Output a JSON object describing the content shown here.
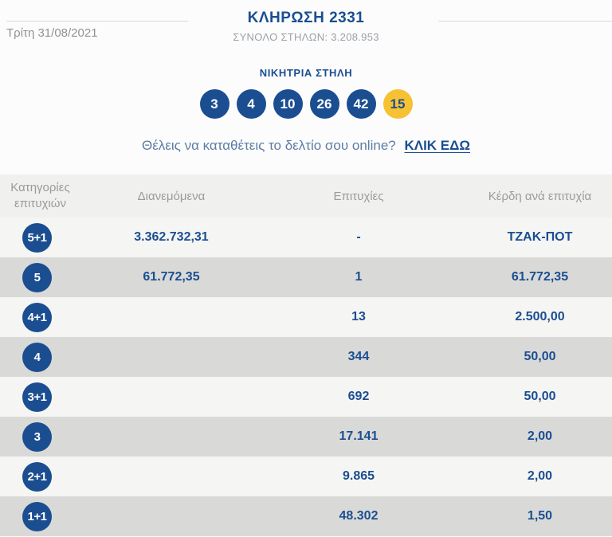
{
  "header": {
    "title": "ΚΛΗΡΩΣΗ 2331",
    "total_columns": "ΣΥΝΟΛΟ ΣΤΗΛΩΝ: 3.208.953",
    "date": "Τρίτη 31/08/2021"
  },
  "winning": {
    "label": "ΝΙΚΗΤΡΙΑ ΣΤΗΛΗ",
    "numbers": [
      "3",
      "4",
      "10",
      "26",
      "42"
    ],
    "joker": "15"
  },
  "online": {
    "text": "Θέλεις να καταθέτεις το δελτίο σου online?",
    "link_label": "ΚΛΙΚ ΕΔΩ"
  },
  "table": {
    "headers": {
      "category": "Κατηγορίες επιτυχιών",
      "distributed": "Διανεμόμενα",
      "wins": "Επιτυχίες",
      "prize": "Κέρδη ανά επιτυχία"
    },
    "rows": [
      {
        "category": "5+1",
        "distributed": "3.362.732,31",
        "wins": "-",
        "prize": "ΤΖΑΚ-ΠΟΤ"
      },
      {
        "category": "5",
        "distributed": "61.772,35",
        "wins": "1",
        "prize": "61.772,35"
      },
      {
        "category": "4+1",
        "distributed": "",
        "wins": "13",
        "prize": "2.500,00"
      },
      {
        "category": "4",
        "distributed": "",
        "wins": "344",
        "prize": "50,00"
      },
      {
        "category": "3+1",
        "distributed": "",
        "wins": "692",
        "prize": "50,00"
      },
      {
        "category": "3",
        "distributed": "",
        "wins": "17.141",
        "prize": "2,00"
      },
      {
        "category": "2+1",
        "distributed": "",
        "wins": "9.865",
        "prize": "2,00"
      },
      {
        "category": "1+1",
        "distributed": "",
        "wins": "48.302",
        "prize": "1,50"
      }
    ]
  },
  "colors": {
    "brand_blue": "#1b4e91",
    "joker_yellow": "#f6c233",
    "row_light": "#f5f5f3",
    "row_dark": "#d9dad8",
    "header_row_bg": "#f0f0ee",
    "muted_gray": "#9b9b9b"
  }
}
